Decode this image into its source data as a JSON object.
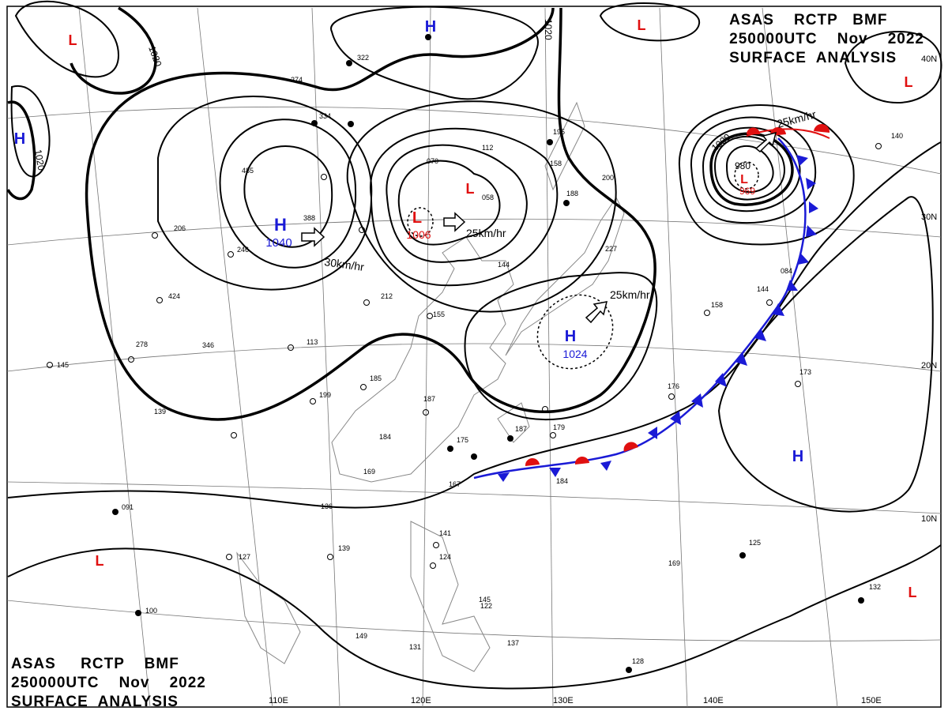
{
  "header": {
    "line1": "ASAS    RCTP   BMF",
    "line2": "250000UTC    Nov    2022",
    "line3": "SURFACE  ANALYSIS"
  },
  "footer": {
    "line1": "ASAS     RCTP    BMF",
    "line2": "250000UTC    Nov    2022",
    "line3": "SURFACE  ANALYSIS"
  },
  "lon_labels": [
    "110E",
    "120E",
    "130E",
    "140E",
    "150E"
  ],
  "lat_labels": [
    "40N",
    "30N",
    "20N",
    "10N"
  ],
  "isobar_labels": [
    "1020",
    "1020",
    "1020",
    "1000",
    "980"
  ],
  "pressure_centers": [
    {
      "type": "H",
      "value": "1040"
    },
    {
      "type": "L",
      "value": "1006"
    },
    {
      "type": "H",
      "value": "1024"
    },
    {
      "type": "L",
      "value": "969"
    },
    {
      "type": "H",
      "value": ""
    },
    {
      "type": "L",
      "value": ""
    }
  ],
  "motion_labels": [
    "30km/hr",
    "25km/hr",
    "25km/hr",
    "25km/hr"
  ],
  "stations": [
    "322",
    "274",
    "334",
    "485",
    "388",
    "246",
    "424",
    "278",
    "346",
    "145",
    "139",
    "206",
    "070",
    "058",
    "112",
    "195",
    "158",
    "188",
    "200",
    "227",
    "144",
    "212",
    "155",
    "113",
    "185",
    "199",
    "187",
    "184",
    "175",
    "169",
    "167",
    "187",
    "179",
    "176",
    "158",
    "144",
    "084",
    "173",
    "140",
    "136",
    "091",
    "127",
    "139",
    "141",
    "124",
    "145",
    "122",
    "137",
    "149",
    "131",
    "125",
    "169",
    "132",
    "128",
    "100",
    "184"
  ],
  "colors": {
    "high": "#1a1ad6",
    "low": "#e01010",
    "front_cold": "#1a1ad6",
    "front_warm": "#e01010"
  }
}
